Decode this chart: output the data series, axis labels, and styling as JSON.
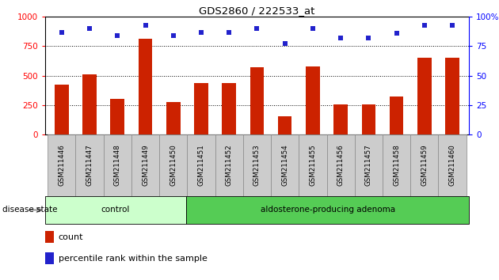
{
  "title": "GDS2860 / 222533_at",
  "samples": [
    "GSM211446",
    "GSM211447",
    "GSM211448",
    "GSM211449",
    "GSM211450",
    "GSM211451",
    "GSM211452",
    "GSM211453",
    "GSM211454",
    "GSM211455",
    "GSM211456",
    "GSM211457",
    "GSM211458",
    "GSM211459",
    "GSM211460"
  ],
  "counts": [
    420,
    510,
    300,
    810,
    275,
    440,
    435,
    570,
    155,
    580,
    255,
    255,
    325,
    650,
    650
  ],
  "percentiles": [
    87,
    90,
    84,
    93,
    84,
    87,
    87,
    90,
    77,
    90,
    82,
    82,
    86,
    93,
    93
  ],
  "control_count": 5,
  "group_labels": [
    "control",
    "aldosterone-producing adenoma"
  ],
  "control_color": "#ccffcc",
  "adenoma_color": "#55cc55",
  "ylim_left": [
    0,
    1000
  ],
  "ylim_right": [
    0,
    100
  ],
  "yticks_left": [
    0,
    250,
    500,
    750,
    1000
  ],
  "yticks_right": [
    0,
    25,
    50,
    75,
    100
  ],
  "ytick_right_labels": [
    "0",
    "25",
    "50",
    "75",
    "100%"
  ],
  "bar_color": "#cc2200",
  "dot_color": "#2222cc",
  "bg_color": "#ffffff",
  "tick_bg_color": "#cccccc",
  "label_count": "count",
  "label_percentile": "percentile rank within the sample",
  "disease_state_label": "disease state"
}
